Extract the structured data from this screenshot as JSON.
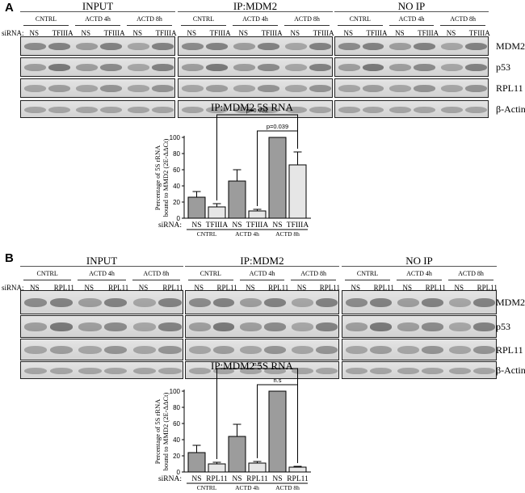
{
  "panels": [
    {
      "letter": "A",
      "groups": [
        {
          "title": "INPUT",
          "conditions": [
            "CNTRL",
            "ACTD 4h",
            "ACTD 8h"
          ],
          "lanes": [
            "NS",
            "TFIIIA",
            "NS",
            "TFIIIA",
            "NS",
            "TFIIIA"
          ]
        },
        {
          "title": "IP:MDM2",
          "conditions": [
            "CNTRL",
            "ACTD 4h",
            "ACTD 8h"
          ],
          "lanes": [
            "NS",
            "TFIIIA",
            "NS",
            "TFIIIA",
            "NS",
            "TFIIIA"
          ]
        },
        {
          "title": "NO IP",
          "conditions": [
            "CNTRL",
            "ACTD 4h",
            "ACTD 8h"
          ],
          "lanes": [
            "NS",
            "TFIIIA",
            "NS",
            "TFIIIA",
            "NS",
            "TFIIIA"
          ]
        }
      ],
      "siRNA_label": "siRNA:",
      "proteins": [
        "MDM2",
        "p53",
        "RPL11",
        "β-Actin"
      ],
      "chart_title": "IP:MDM2 5S RNA"
    },
    {
      "letter": "B",
      "groups": [
        {
          "title": "INPUT",
          "conditions": [
            "CNTRL",
            "ACTD 4h",
            "ACTD 8h"
          ],
          "lanes": [
            "NS",
            "RPL11",
            "NS",
            "RPL11",
            "NS",
            "RPL11"
          ]
        },
        {
          "title": "IP:MDM2",
          "conditions": [
            "CNTRL",
            "ACTD 4h",
            "ACTD 8h"
          ],
          "lanes": [
            "NS",
            "RPL11",
            "NS",
            "RPL11",
            "NS",
            "RPL11"
          ]
        },
        {
          "title": "NO IP",
          "conditions": [
            "CNTRL",
            "ACTD 4h",
            "ACTD 8h"
          ],
          "lanes": [
            "NS",
            "RPL11",
            "NS",
            "RPL11",
            "NS",
            "RPL11"
          ]
        }
      ],
      "siRNA_label": "siRNA:",
      "proteins": [
        "MDM2",
        "p53",
        "RPL11",
        "β-Actin"
      ],
      "chart_title": "IP:MDM2 5S RNA"
    }
  ],
  "chart_data": [
    {
      "type": "bar",
      "title": "IP:MDM2 5S RNA",
      "ylabel": "Percentage of 5S rRNA bound to MMD2 (2E-ΔΔCt)",
      "ylim": [
        0,
        100
      ],
      "yticks": [
        0,
        20,
        40,
        60,
        80,
        100
      ],
      "siRNA_label": "siRNA:",
      "categories": [
        "NS",
        "TFIIIA",
        "NS",
        "TFIIIA",
        "NS",
        "TFIIIA"
      ],
      "groups": [
        "CNTRL",
        "ACTD 4h",
        "ACTD 8h"
      ],
      "values": [
        26,
        14,
        46,
        9,
        100,
        66
      ],
      "errors": [
        7,
        4,
        14,
        2,
        0,
        16
      ],
      "bar_colors": [
        "#9c9c9c",
        "#e6e6e6",
        "#9c9c9c",
        "#e6e6e6",
        "#9c9c9c",
        "#e6e6e6"
      ],
      "annotations": [
        {
          "text": "p=0.032",
          "from": 1,
          "to": 5
        },
        {
          "text": "p=0.039",
          "from": 3,
          "to": 5
        }
      ]
    },
    {
      "type": "bar",
      "title": "IP:MDM2 5S RNA",
      "ylabel": "Percentage of 5S rRNA bound to MMD2 (2E-ΔΔCt)",
      "ylim": [
        0,
        100
      ],
      "yticks": [
        0,
        20,
        40,
        60,
        80,
        100
      ],
      "siRNA_label": "siRNA:",
      "categories": [
        "NS",
        "RPL11",
        "NS",
        "RPL11",
        "NS",
        "RPL11"
      ],
      "groups": [
        "CNTRL",
        "ACTD 4h",
        "ACTD 8h"
      ],
      "values": [
        24,
        10,
        44,
        11,
        100,
        6
      ],
      "errors": [
        9,
        2,
        15,
        2,
        0,
        1
      ],
      "bar_colors": [
        "#9c9c9c",
        "#e6e6e6",
        "#9c9c9c",
        "#e6e6e6",
        "#9c9c9c",
        "#e6e6e6"
      ],
      "annotations": [
        {
          "text": "n.s",
          "from": 1,
          "to": 5
        },
        {
          "text": "n.s",
          "from": 3,
          "to": 5
        }
      ]
    }
  ]
}
